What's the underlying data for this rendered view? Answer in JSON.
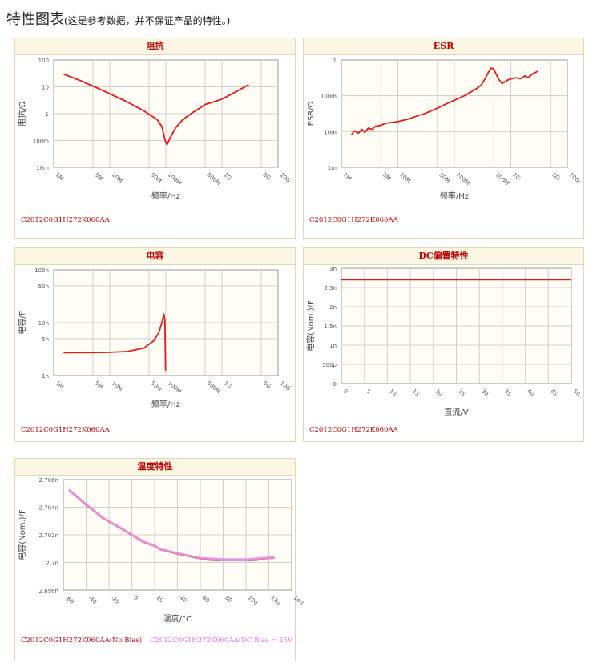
{
  "page": {
    "title": "特性图表",
    "subtitle": "(这是参考数据，并不保证产品的特性。)"
  },
  "colors": {
    "curve": "#e31a1a",
    "curve_bias": "#e890e0",
    "header_bg": "#fbf6e3",
    "header_text": "#c00000",
    "plot_bg": "#fffdf5",
    "grid": "#cfcfcf"
  },
  "chart_data": [
    {
      "id": "impedance",
      "type": "line",
      "title": "阻抗",
      "xlabel": "频率/Hz",
      "ylabel": "阻抗/Ω",
      "xscale": "log",
      "yscale": "log",
      "xlim": [
        1000000,
        10000000000
      ],
      "ylim": [
        0.01,
        100
      ],
      "grid": true,
      "xticks": [
        1000000,
        5000000,
        10000000,
        50000000,
        100000000,
        500000000,
        1000000000,
        5000000000,
        10000000000
      ],
      "xticklabels": [
        "1M",
        "5M",
        "10M",
        "50M",
        "100M",
        "500M",
        "1G",
        "5G",
        "10G"
      ],
      "yticks": [
        0.01,
        0.1,
        1,
        10,
        100
      ],
      "yticklabels": [
        "10m",
        "100m",
        "1",
        "10",
        "100"
      ],
      "caption": "C2012C0G1H272K060AA",
      "series": [
        {
          "x": [
            1500000,
            3000000,
            6000000,
            10000000,
            20000000,
            40000000,
            70000000,
            85000000,
            97000000,
            105000000,
            120000000,
            150000000,
            200000000,
            300000000,
            400000000,
            500000000,
            700000000,
            1000000000,
            2000000000,
            3000000000
          ],
          "y": [
            30,
            17,
            9,
            5.5,
            2.8,
            1.3,
            0.6,
            0.33,
            0.1,
            0.07,
            0.13,
            0.3,
            0.6,
            1.1,
            1.6,
            2.2,
            2.7,
            3.5,
            7.5,
            12
          ]
        }
      ]
    },
    {
      "id": "esr",
      "type": "line",
      "title": "ESR",
      "xlabel": "频率/Hz",
      "ylabel": "ESR/Ω",
      "xscale": "log",
      "yscale": "log",
      "xlim": [
        1000000,
        10000000000
      ],
      "ylim": [
        0.001,
        1
      ],
      "grid": true,
      "xticks": [
        1000000,
        5000000,
        10000000,
        50000000,
        100000000,
        500000000,
        1000000000,
        5000000000,
        10000000000
      ],
      "xticklabels": [
        "1M",
        "5M",
        "10M",
        "50M",
        "100M",
        "500M",
        "1G",
        "5G",
        "10G"
      ],
      "yticks": [
        0.001,
        0.01,
        0.1,
        1
      ],
      "yticklabels": [
        "1m",
        "10m",
        "100m",
        "1"
      ],
      "caption": "C2012C0G1H272K060AA",
      "series": [
        {
          "x": [
            1500000,
            1700000,
            2000000,
            2300000,
            2600000,
            3000000,
            3500000,
            4000000,
            5000000,
            6000000,
            8000000,
            10000000,
            15000000,
            20000000,
            30000000,
            50000000,
            70000000,
            100000000,
            150000000,
            200000000,
            250000000,
            300000000,
            350000000,
            400000000,
            450000000,
            500000000,
            600000000,
            700000000,
            900000000,
            1200000000,
            1500000000,
            1800000000,
            2000000000,
            2500000000,
            3000000000
          ],
          "y": [
            0.008,
            0.0105,
            0.009,
            0.0115,
            0.0095,
            0.0125,
            0.0115,
            0.014,
            0.015,
            0.017,
            0.018,
            0.019,
            0.022,
            0.026,
            0.032,
            0.045,
            0.058,
            0.075,
            0.1,
            0.13,
            0.16,
            0.2,
            0.3,
            0.45,
            0.6,
            0.55,
            0.3,
            0.22,
            0.28,
            0.32,
            0.3,
            0.36,
            0.32,
            0.42,
            0.48
          ]
        }
      ]
    },
    {
      "id": "capacitance",
      "type": "line",
      "title": "电容",
      "xlabel": "频率/Hz",
      "ylabel": "电容/F",
      "xscale": "log",
      "yscale": "log",
      "xlim": [
        1000000,
        10000000000
      ],
      "ylim": [
        1e-09,
        1e-07
      ],
      "grid": true,
      "xticks": [
        1000000,
        5000000,
        10000000,
        50000000,
        100000000,
        500000000,
        1000000000,
        5000000000,
        10000000000
      ],
      "xticklabels": [
        "1M",
        "5M",
        "10M",
        "50M",
        "100M",
        "500M",
        "1G",
        "5G",
        "10G"
      ],
      "yticks": [
        1e-09,
        5e-09,
        1e-08,
        5e-08,
        1e-07
      ],
      "yticklabels": [
        "1n",
        "5n",
        "10n",
        "50n",
        "100n"
      ],
      "caption": "C2012C0G1H272K060AA",
      "series": [
        {
          "x": [
            1500000,
            5000000,
            10000000,
            20000000,
            40000000,
            60000000,
            75000000,
            85000000,
            92000000,
            96000000,
            99000000
          ],
          "y": [
            2.72e-09,
            2.73e-09,
            2.76e-09,
            2.85e-09,
            3.3e-09,
            4.5e-09,
            6.5e-09,
            1e-08,
            1.45e-08,
            1.1e-08,
            1.25e-09
          ]
        }
      ]
    },
    {
      "id": "dc-bias",
      "type": "line",
      "title": "DC偏置特性",
      "xlabel": "直流/V",
      "ylabel": "电容(Nom.)/F",
      "xlim": [
        0,
        50
      ],
      "ylim": [
        0,
        3e-09
      ],
      "grid": true,
      "xticks": [
        0,
        5,
        10,
        15,
        20,
        25,
        30,
        35,
        40,
        45,
        50
      ],
      "xticklabels": [
        "0",
        "5",
        "10",
        "15",
        "20",
        "25",
        "30",
        "35",
        "40",
        "45",
        "50"
      ],
      "yticks": [
        0,
        5e-10,
        1e-09,
        1.5e-09,
        2e-09,
        2.5e-09,
        3e-09
      ],
      "yticklabels": [
        "0",
        "500p",
        "1n",
        "1.5n",
        "2n",
        "2.5n",
        "3n"
      ],
      "caption": "C2012C0G1H272K060AA",
      "series": [
        {
          "x": [
            0,
            50
          ],
          "y": [
            2.7e-09,
            2.7e-09
          ]
        }
      ]
    },
    {
      "id": "temperature",
      "type": "line",
      "title": "温度特性",
      "xlabel": "温度/°C",
      "ylabel": "电容(Nom.)/F",
      "xlim": [
        -60,
        140
      ],
      "ylim": [
        2.698e-09,
        2.706e-09
      ],
      "grid": true,
      "xticks": [
        -60,
        -40,
        -20,
        0,
        20,
        40,
        60,
        80,
        100,
        120,
        140
      ],
      "xticklabels": [
        "-60",
        "-40",
        "-20",
        "0",
        "20",
        "40",
        "60",
        "80",
        "100",
        "120",
        "140"
      ],
      "yticks": [
        2.698e-09,
        2.7e-09,
        2.702e-09,
        2.704e-09,
        2.706e-09
      ],
      "yticklabels": [
        "2.698n",
        "2.7n",
        "2.702n",
        "2.704n",
        "2.706n"
      ],
      "caption": "C2012C0G1H272K060AA(No Bias)",
      "caption2": "C2012C0G1H272K060AA(DC Bias = 25V )",
      "series": [
        {
          "name": "C2012C0G1H272K060AA(No Bias)",
          "x": [
            -55,
            -40,
            -25,
            -10,
            0,
            10,
            20,
            25,
            40,
            60,
            80,
            100,
            120,
            125
          ],
          "y": [
            2.70525e-09,
            2.7042e-09,
            2.7032e-09,
            2.7025e-09,
            2.702e-09,
            2.7015e-09,
            2.7012e-09,
            2.70095e-09,
            2.70065e-09,
            2.7003e-09,
            2.7002e-09,
            2.7002e-09,
            2.70032e-09,
            2.70035e-09
          ]
        },
        {
          "name": "C2012C0G1H272K060AA(DC Bias = 25V )",
          "x": [
            -55,
            -40,
            -25,
            -10,
            0,
            10,
            20,
            25,
            40,
            60,
            80,
            100,
            120,
            125
          ],
          "y": [
            2.70527e-09,
            2.70422e-09,
            2.70322e-09,
            2.70252e-09,
            2.70202e-09,
            2.70152e-09,
            2.70122e-09,
            2.70097e-09,
            2.70067e-09,
            2.70032e-09,
            2.70022e-09,
            2.70022e-09,
            2.70034e-09,
            2.70037e-09
          ]
        }
      ]
    }
  ]
}
